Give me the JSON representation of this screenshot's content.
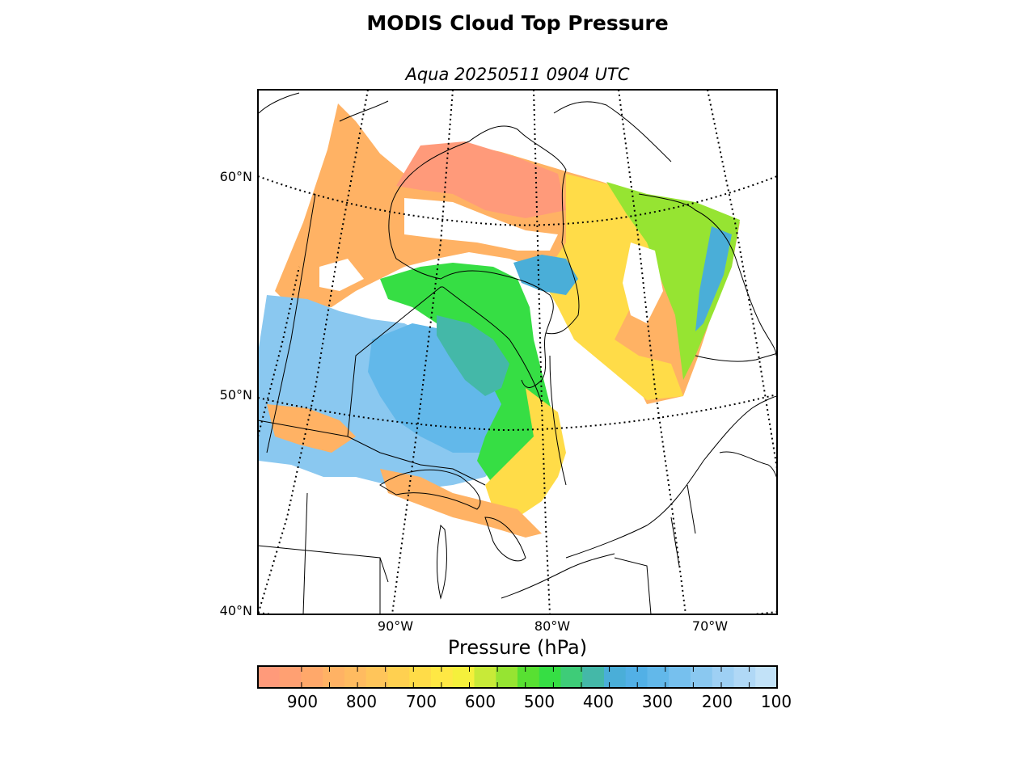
{
  "title": "MODIS Cloud Top Pressure",
  "subtitle": "Aqua 20250511 0904 UTC",
  "map": {
    "lat_labels": [
      "60°N",
      "50°N",
      "40°N"
    ],
    "lon_labels": [
      "90°W",
      "80°W",
      "70°W"
    ]
  },
  "colorbar": {
    "label": "Pressure (hPa)",
    "ticks": [
      "900",
      "800",
      "700",
      "600",
      "500",
      "400",
      "300",
      "200",
      "100"
    ],
    "colors": [
      "#ff9a7a",
      "#ffa072",
      "#ffa86a",
      "#ffb264",
      "#ffbb60",
      "#ffc55a",
      "#ffd050",
      "#ffdc48",
      "#ffe844",
      "#f5f03c",
      "#c8ea38",
      "#96e432",
      "#58e032",
      "#36de44",
      "#3ecc78",
      "#44b8a8",
      "#4aaed8",
      "#52b0e6",
      "#62b8ea",
      "#76c0ee",
      "#8ac8f0",
      "#9ed0f4",
      "#b0d8f6",
      "#c2e2f8"
    ],
    "colors_note": "warm (high pressure) to cool (low pressure)"
  },
  "colors": {
    "ct_900": "#ff9a7a",
    "ct_800": "#ffb264",
    "ct_700": "#ffdc48",
    "ct_600": "#96e432",
    "ct_500": "#36de44",
    "ct_400": "#4aaed8",
    "ct_300": "#76c0ee",
    "ct_200": "#b0d8f6"
  }
}
